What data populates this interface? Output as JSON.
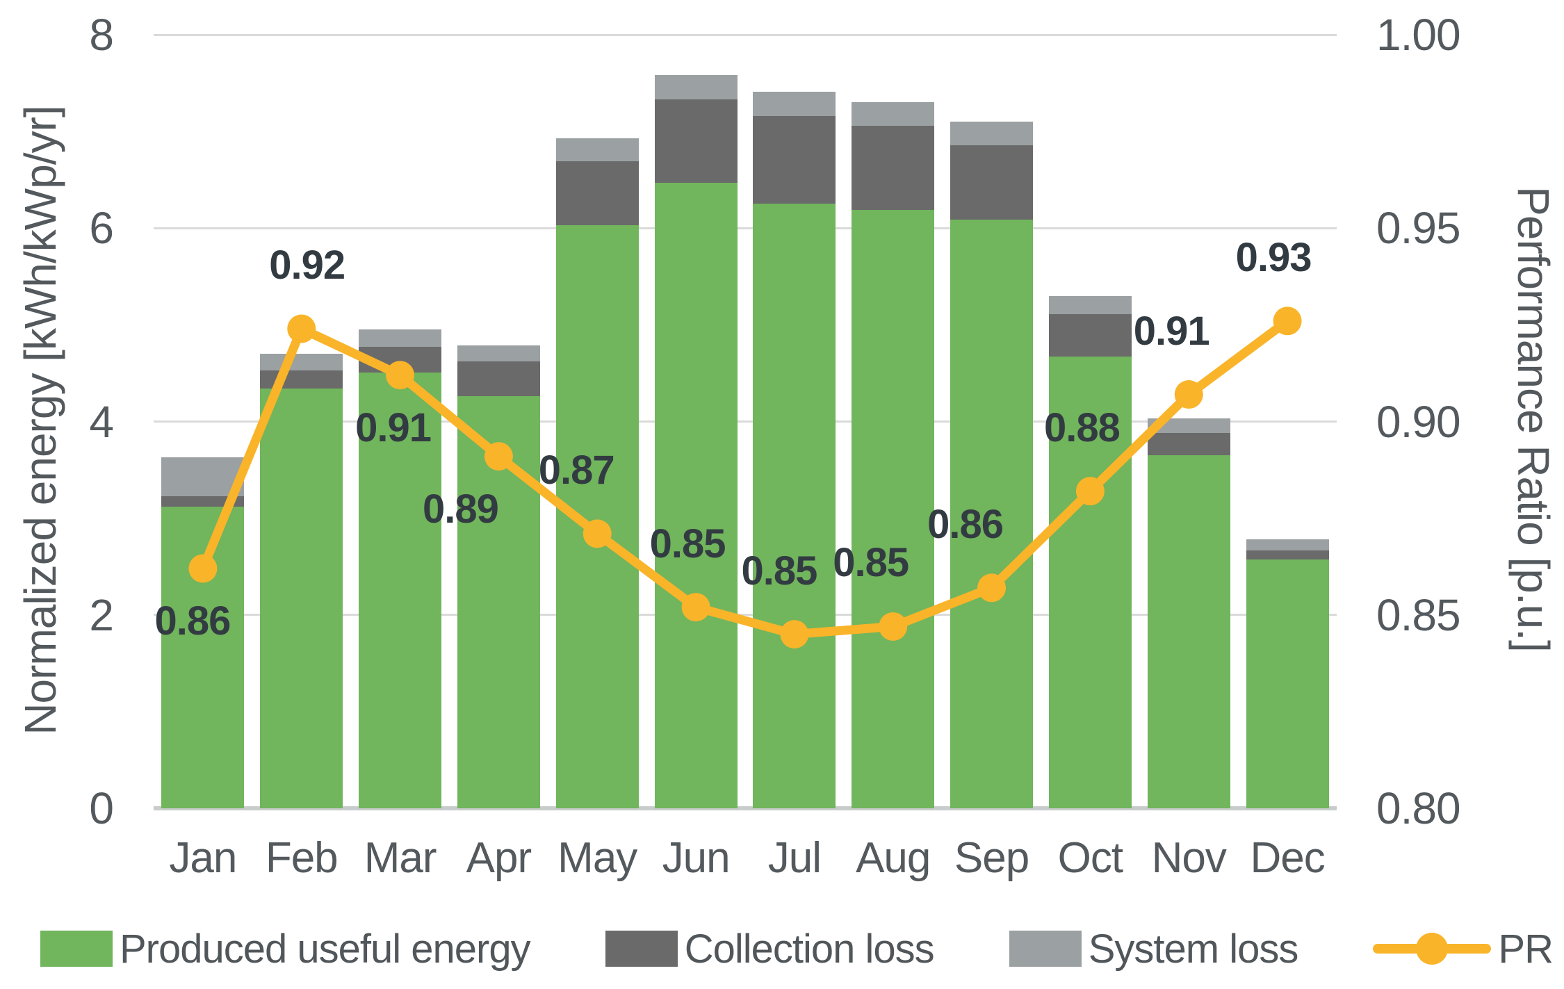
{
  "chart_data": {
    "type": "bar",
    "subtype": "stacked-bar-with-line-overlay",
    "title": "",
    "categories": [
      "Jan",
      "Feb",
      "Mar",
      "Apr",
      "May",
      "Jun",
      "Jul",
      "Aug",
      "Sep",
      "Oct",
      "Nov",
      "Dec"
    ],
    "series": [
      {
        "name": "Produced useful energy",
        "type": "bar",
        "color": "#71B55C",
        "values": [
          3.12,
          4.34,
          4.51,
          4.26,
          6.03,
          6.47,
          6.25,
          6.19,
          6.09,
          4.67,
          3.65,
          2.57
        ]
      },
      {
        "name": "Collection loss",
        "type": "bar",
        "color": "#6A6A6A",
        "values": [
          0.11,
          0.19,
          0.26,
          0.36,
          0.66,
          0.86,
          0.91,
          0.87,
          0.77,
          0.44,
          0.23,
          0.1
        ]
      },
      {
        "name": "System loss",
        "type": "bar",
        "color": "#9BA0A2",
        "values": [
          0.4,
          0.17,
          0.18,
          0.17,
          0.24,
          0.25,
          0.25,
          0.24,
          0.24,
          0.19,
          0.15,
          0.11
        ]
      },
      {
        "name": "PR",
        "type": "line",
        "color": "#F9B42A",
        "axis": "right",
        "values": [
          0.862,
          0.924,
          0.912,
          0.891,
          0.871,
          0.852,
          0.845,
          0.847,
          0.857,
          0.882,
          0.907,
          0.926
        ],
        "point_labels": [
          "0.86",
          "0.92",
          "0.91",
          "0.89",
          "0.87",
          "0.85",
          "0.85",
          "0.85",
          "0.86",
          "0.88",
          "0.91",
          "0.93"
        ],
        "point_label_position": [
          "below",
          "above",
          "below",
          "below",
          "above",
          "above",
          "above",
          "above",
          "above",
          "above",
          "above",
          "above"
        ],
        "point_label_dx": [
          -15,
          8,
          -10,
          -55,
          -30,
          -12,
          -22,
          -32,
          -38,
          -12,
          -25,
          -20
        ]
      }
    ],
    "bar_totals": [
      3.63,
      4.7,
      4.95,
      4.79,
      6.93,
      7.58,
      7.41,
      7.3,
      7.1,
      5.3,
      4.03,
      2.78
    ],
    "y_left": {
      "label": "Normalized energy [kWh/kWp/yr]",
      "ticks": [
        "8",
        "6",
        "4",
        "2",
        "0"
      ],
      "tick_values": [
        8,
        6,
        4,
        2,
        0
      ],
      "range": [
        0,
        8
      ]
    },
    "y_right": {
      "label": "Performance Ratio [p.u.]",
      "ticks": [
        "1.00",
        "0.95",
        "0.90",
        "0.85",
        "0.80"
      ],
      "tick_values": [
        1.0,
        0.95,
        0.9,
        0.85,
        0.8
      ],
      "range": [
        0.8,
        1.0
      ]
    },
    "grid": true,
    "gridline_values": [
      8,
      6,
      4,
      2
    ],
    "legend_position": "bottom",
    "colors": {
      "produced": "#71B55C",
      "collection_loss": "#6A6A6A",
      "system_loss": "#9BA0A2",
      "pr_line": "#F9B42A",
      "axis_text": "#53595D",
      "data_label_text": "#333B42",
      "gridline": "#DADADA",
      "axis_line": "#C9CCCC",
      "background": "#FFFFFF"
    }
  }
}
